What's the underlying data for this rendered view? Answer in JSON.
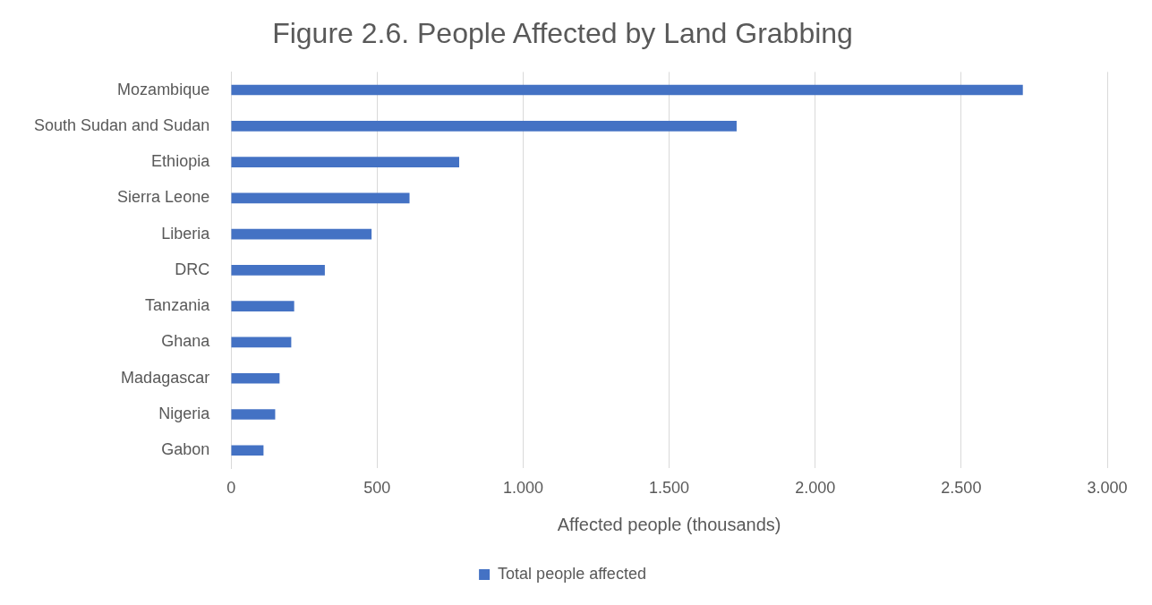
{
  "chart_data": {
    "type": "bar",
    "orientation": "horizontal",
    "title": "Figure 2.6. People Affected by Land Grabbing",
    "xlabel": "Affected people (thousands)",
    "categories": [
      "Mozambique",
      "South Sudan and Sudan",
      "Ethiopia",
      "Sierra Leone",
      "Liberia",
      "DRC",
      "Tanzania",
      "Ghana",
      "Madagascar",
      "Nigeria",
      "Gabon"
    ],
    "series": [
      {
        "name": "Total people affected",
        "color": "#4472c4",
        "values": [
          2710,
          1730,
          780,
          610,
          480,
          320,
          215,
          205,
          165,
          150,
          110
        ]
      }
    ],
    "xlim": [
      0,
      3000
    ],
    "xticks": [
      0,
      {
        "value": 500,
        "label": "500"
      },
      {
        "value": 1000,
        "label": "1.000"
      },
      {
        "value": 1500,
        "label": "1.500"
      },
      {
        "value": 2000,
        "label": "2.000"
      },
      {
        "value": 2500,
        "label": "2.500"
      },
      {
        "value": 3000,
        "label": "3.000"
      }
    ],
    "grid": "x",
    "legend": "bottom"
  }
}
